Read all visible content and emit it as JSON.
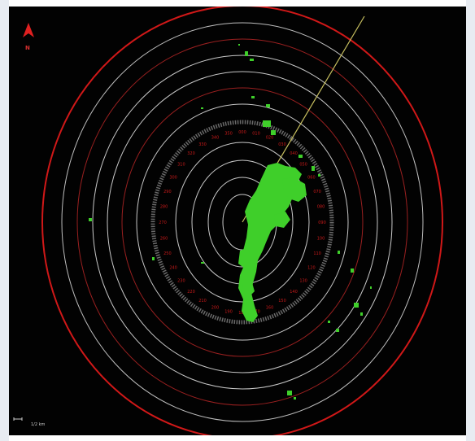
{
  "radar": {
    "north_marker": {
      "icon": "north-arrow-icon",
      "label": "N"
    },
    "range_scale": {
      "icon": "range-scale-bar-icon",
      "label": "1/2 km"
    },
    "bearing_labels": [
      "000",
      "010",
      "020",
      "030",
      "040",
      "050",
      "060",
      "070",
      "080",
      "090",
      "100",
      "110",
      "120",
      "130",
      "140",
      "150",
      "160",
      "170",
      "180",
      "190",
      "200",
      "210",
      "220",
      "230",
      "240",
      "250",
      "260",
      "270",
      "280",
      "290",
      "300",
      "310",
      "320",
      "330",
      "340",
      "350"
    ],
    "colors": {
      "background": "#020202",
      "range_ring": "#d8d8d8",
      "range_ring_red": "#d01818",
      "echo": "#3fcf2a",
      "bearing_scale": "#c81a1a",
      "heading_line": "#c8c060"
    }
  }
}
